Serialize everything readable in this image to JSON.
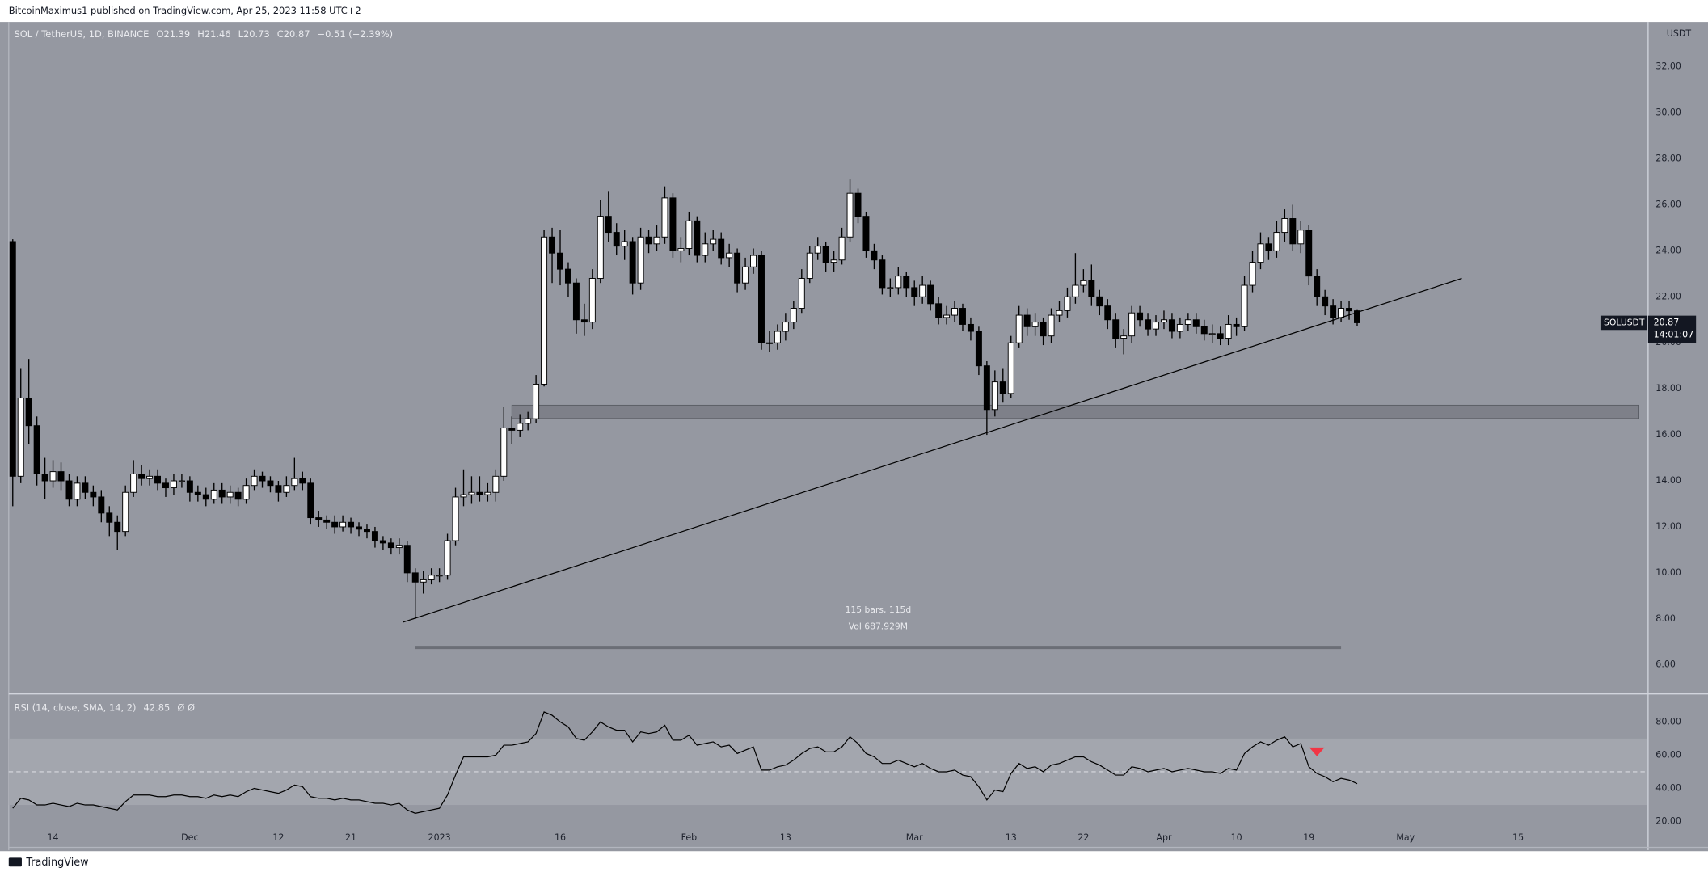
{
  "header": {
    "publisher": "BitcoinMaximus1 published on TradingView.com, Apr 25, 2023 11:58 UTC+2",
    "brand": "TradingView"
  },
  "chart_data": [
    {
      "type": "candlestick",
      "title": "SOL / TetherUS, 1D, BINANCE",
      "ohlc_letters": [
        "O",
        "H",
        "L",
        "C"
      ],
      "change_text": "−0.51 (−2.39%)",
      "axis_unit": "USDT",
      "symbol": "SOLUSDT",
      "countdown": "14:01:07",
      "up_color": "#ffffff",
      "down_color": "#000000",
      "x": [
        0,
        1,
        2,
        3,
        4,
        5,
        6,
        7,
        8,
        9,
        10,
        11,
        12,
        13,
        14,
        15,
        16,
        17,
        18,
        19,
        20,
        21,
        22,
        23,
        24,
        25,
        26,
        27,
        28,
        29,
        30,
        31,
        32,
        33,
        34,
        35,
        36,
        37,
        38,
        39,
        40,
        41,
        42,
        43,
        44,
        45,
        46,
        47,
        48,
        49,
        50,
        51,
        52,
        53,
        54,
        55,
        56,
        57,
        58,
        59,
        60,
        61,
        62,
        63,
        64,
        65,
        66,
        67,
        68,
        69,
        70,
        71,
        72,
        73,
        74,
        75,
        76,
        77,
        78,
        79,
        80,
        81,
        82,
        83,
        84,
        85,
        86,
        87,
        88,
        89,
        90,
        91,
        92,
        93,
        94,
        95,
        96,
        97,
        98,
        99,
        100,
        101,
        102,
        103,
        104,
        105,
        106,
        107,
        108,
        109,
        110,
        111,
        112,
        113,
        114,
        115,
        116,
        117,
        118,
        119,
        120,
        121,
        122,
        123,
        124,
        125,
        126,
        127,
        128,
        129,
        130,
        131,
        132,
        133,
        134,
        135,
        136,
        137,
        138,
        139,
        140,
        141,
        142,
        143,
        144,
        145,
        146,
        147,
        148,
        149,
        150,
        151,
        152,
        153,
        154,
        155,
        156,
        157,
        158,
        159,
        160,
        161,
        162,
        163,
        164,
        165,
        166,
        167
      ],
      "open": [
        24.4,
        14.2,
        17.6,
        16.4,
        14.3,
        14.0,
        14.4,
        14.0,
        13.2,
        13.9,
        13.5,
        13.3,
        12.6,
        12.2,
        11.8,
        13.5,
        14.3,
        14.1,
        14.2,
        13.9,
        13.7,
        14.0,
        14.0,
        13.5,
        13.4,
        13.2,
        13.6,
        13.3,
        13.5,
        13.2,
        13.8,
        14.2,
        14.0,
        13.8,
        13.5,
        13.8,
        14.1,
        13.9,
        12.4,
        12.3,
        12.2,
        12.0,
        12.2,
        12.0,
        11.9,
        11.8,
        11.4,
        11.3,
        11.1,
        11.2,
        10.0,
        9.6,
        9.7,
        9.9,
        9.9,
        11.4,
        13.3,
        13.4,
        13.5,
        13.4,
        13.5,
        14.2,
        16.3,
        16.2,
        16.5,
        16.7,
        18.2,
        24.6,
        23.9,
        23.2,
        22.6,
        21.0,
        20.9,
        22.8,
        25.5,
        24.8,
        24.2,
        24.4,
        22.6,
        24.6,
        24.3,
        24.6,
        26.3,
        24.0,
        24.1,
        25.3,
        23.8,
        24.3,
        24.5,
        23.7,
        23.9,
        22.6,
        23.3,
        23.8,
        20.0,
        20.0,
        20.5,
        20.9,
        21.5,
        22.8,
        23.9,
        24.2,
        23.5,
        23.6,
        24.6,
        26.5,
        25.5,
        24.0,
        23.6,
        22.4,
        22.4,
        22.9,
        22.4,
        22.0,
        22.5,
        21.7,
        21.1,
        21.2,
        21.5,
        20.8,
        20.5,
        19.0,
        17.1,
        18.3,
        17.8,
        20.0,
        21.2,
        20.7,
        20.9,
        20.3,
        21.2,
        21.4,
        22.0,
        22.5,
        22.7,
        22.0,
        21.6,
        21.0,
        20.2,
        20.3,
        21.3,
        21.0,
        20.6,
        20.9,
        21.0,
        20.5,
        20.8,
        21.0,
        20.7,
        20.4,
        20.4,
        20.2,
        20.8,
        20.7,
        22.5,
        23.5,
        24.3,
        24.0,
        24.8,
        25.4,
        24.3,
        24.9,
        22.9,
        22.0,
        21.6,
        21.1,
        21.5,
        21.39
      ],
      "high": [
        24.5,
        18.9,
        19.3,
        16.8,
        15.0,
        14.9,
        14.8,
        14.3,
        14.2,
        14.2,
        13.8,
        13.6,
        12.9,
        12.5,
        13.8,
        14.9,
        14.7,
        14.5,
        14.5,
        14.1,
        14.3,
        14.3,
        14.2,
        13.8,
        13.7,
        13.9,
        13.9,
        13.8,
        13.7,
        14.1,
        14.5,
        14.4,
        14.2,
        14.0,
        14.2,
        15.0,
        14.4,
        14.1,
        12.7,
        12.5,
        12.5,
        12.5,
        12.4,
        12.2,
        12.1,
        12.0,
        11.6,
        11.5,
        11.5,
        11.4,
        10.2,
        10.1,
        10.2,
        10.2,
        11.7,
        13.7,
        14.5,
        14.2,
        14.2,
        13.9,
        14.5,
        17.2,
        16.8,
        16.9,
        17.0,
        18.6,
        24.9,
        25.0,
        24.9,
        23.5,
        22.8,
        21.7,
        23.2,
        26.2,
        26.6,
        25.2,
        24.9,
        24.6,
        25.0,
        24.9,
        25.1,
        26.8,
        26.5,
        24.6,
        25.7,
        25.5,
        24.8,
        24.9,
        24.8,
        24.3,
        24.1,
        23.7,
        24.1,
        24.0,
        20.5,
        20.8,
        21.3,
        21.8,
        23.2,
        24.2,
        24.6,
        24.4,
        24.0,
        25.0,
        27.1,
        26.7,
        25.7,
        24.3,
        23.8,
        22.8,
        23.3,
        23.1,
        22.7,
        22.9,
        22.7,
        22.0,
        21.6,
        21.8,
        21.7,
        21.1,
        20.7,
        19.2,
        18.8,
        18.9,
        20.3,
        21.6,
        21.5,
        21.3,
        21.1,
        21.5,
        21.8,
        22.4,
        23.9,
        23.2,
        23.4,
        22.3,
        21.9,
        21.3,
        20.6,
        21.6,
        21.6,
        21.3,
        21.2,
        21.4,
        21.3,
        21.1,
        21.3,
        21.3,
        21.0,
        20.8,
        20.7,
        21.2,
        21.1,
        22.9,
        24.0,
        24.8,
        24.6,
        25.3,
        25.8,
        26.0,
        25.3,
        25.1,
        23.2,
        22.3,
        21.9,
        21.8,
        21.8,
        21.46
      ],
      "low": [
        12.9,
        13.9,
        15.6,
        13.8,
        13.2,
        13.7,
        13.6,
        12.9,
        12.9,
        13.2,
        12.9,
        12.2,
        11.6,
        11.0,
        11.6,
        13.3,
        13.8,
        13.8,
        13.6,
        13.3,
        13.4,
        13.7,
        13.1,
        13.1,
        12.9,
        13.0,
        13.0,
        13.0,
        12.9,
        13.0,
        13.6,
        13.7,
        13.5,
        13.1,
        13.3,
        13.6,
        13.6,
        12.1,
        12.0,
        11.9,
        11.7,
        11.8,
        11.7,
        11.6,
        11.5,
        11.1,
        11.0,
        10.8,
        10.8,
        9.6,
        8.0,
        9.1,
        9.5,
        9.6,
        9.7,
        11.2,
        12.9,
        13.0,
        13.1,
        13.1,
        13.1,
        14.0,
        15.6,
        15.9,
        16.2,
        16.5,
        18.1,
        22.6,
        22.5,
        22.0,
        20.4,
        20.3,
        20.6,
        22.6,
        24.4,
        23.8,
        23.6,
        22.1,
        22.3,
        23.9,
        24.0,
        24.3,
        23.7,
        23.5,
        23.8,
        23.5,
        23.5,
        24.0,
        23.4,
        23.3,
        22.2,
        22.3,
        23.0,
        19.7,
        19.6,
        19.7,
        20.1,
        20.6,
        21.3,
        22.6,
        23.6,
        23.1,
        23.1,
        23.4,
        24.4,
        25.2,
        23.7,
        23.2,
        22.1,
        22.0,
        22.1,
        22.0,
        21.6,
        21.7,
        21.4,
        20.8,
        20.8,
        20.9,
        20.5,
        20.1,
        18.6,
        16.0,
        16.8,
        17.4,
        17.6,
        19.8,
        20.3,
        20.3,
        19.9,
        20.0,
        20.9,
        21.1,
        21.7,
        22.2,
        21.6,
        21.2,
        20.6,
        19.8,
        19.5,
        20.0,
        20.7,
        20.3,
        20.3,
        20.6,
        20.2,
        20.2,
        20.5,
        20.4,
        20.1,
        20.0,
        19.9,
        19.9,
        20.3,
        20.5,
        22.2,
        23.2,
        23.6,
        23.7,
        24.4,
        24.0,
        23.9,
        22.5,
        21.6,
        21.2,
        20.8,
        20.9,
        21.0,
        20.73
      ],
      "close": [
        14.2,
        17.6,
        16.4,
        14.3,
        14.0,
        14.4,
        14.0,
        13.2,
        13.9,
        13.5,
        13.3,
        12.6,
        12.2,
        11.8,
        13.5,
        14.3,
        14.1,
        14.2,
        13.9,
        13.7,
        14.0,
        14.0,
        13.5,
        13.4,
        13.2,
        13.6,
        13.3,
        13.5,
        13.2,
        13.8,
        14.2,
        14.0,
        13.8,
        13.5,
        13.8,
        14.1,
        13.9,
        12.4,
        12.3,
        12.2,
        12.0,
        12.2,
        12.0,
        11.9,
        11.8,
        11.4,
        11.3,
        11.1,
        11.2,
        10.0,
        9.6,
        9.7,
        9.9,
        9.9,
        11.4,
        13.3,
        13.4,
        13.5,
        13.4,
        13.5,
        14.2,
        16.3,
        16.2,
        16.5,
        16.7,
        18.2,
        24.6,
        23.9,
        23.2,
        22.6,
        21.0,
        20.9,
        22.8,
        25.5,
        24.8,
        24.2,
        24.4,
        22.6,
        24.6,
        24.3,
        24.6,
        26.3,
        24.0,
        24.1,
        25.3,
        23.8,
        24.3,
        24.5,
        23.7,
        23.9,
        22.6,
        23.3,
        23.8,
        20.0,
        20.0,
        20.5,
        20.9,
        21.5,
        22.8,
        23.9,
        24.2,
        23.5,
        23.6,
        24.6,
        26.5,
        25.5,
        24.0,
        23.6,
        22.4,
        22.4,
        22.9,
        22.4,
        22.0,
        22.5,
        21.7,
        21.1,
        21.2,
        21.5,
        20.8,
        20.5,
        19.0,
        17.1,
        18.3,
        17.8,
        20.0,
        21.2,
        20.7,
        20.9,
        20.3,
        21.2,
        21.4,
        22.0,
        22.5,
        22.7,
        22.0,
        21.6,
        21.0,
        20.2,
        20.3,
        21.3,
        21.0,
        20.6,
        20.9,
        21.0,
        20.5,
        20.8,
        21.0,
        20.7,
        20.4,
        20.4,
        20.2,
        20.8,
        20.7,
        22.5,
        23.5,
        24.3,
        24.0,
        24.8,
        25.4,
        24.3,
        24.9,
        22.9,
        22.0,
        21.6,
        21.1,
        21.5,
        21.39,
        20.87
      ],
      "xlim": [
        -0.5,
        203
      ],
      "ylim": [
        4.76,
        33.95
      ],
      "yticks": [
        {
          "value": 6,
          "label": "6.00"
        },
        {
          "value": 8,
          "label": "8.00"
        },
        {
          "value": 10,
          "label": "10.00"
        },
        {
          "value": 12,
          "label": "12.00"
        },
        {
          "value": 14,
          "label": "14.00"
        },
        {
          "value": 16,
          "label": "16.00"
        },
        {
          "value": 18,
          "label": "18.00"
        },
        {
          "value": 20,
          "label": "20.00"
        },
        {
          "value": 22,
          "label": "22.00"
        },
        {
          "value": 24,
          "label": "24.00"
        },
        {
          "value": 26,
          "label": "26.00"
        },
        {
          "value": 28,
          "label": "28.00"
        },
        {
          "value": 30,
          "label": "30.00"
        },
        {
          "value": 32,
          "label": "32.00"
        }
      ],
      "trendline": {
        "x": [
          48.5,
          180
        ],
        "y": [
          7.86,
          22.8
        ],
        "color": "#000000"
      },
      "zone": {
        "x": [
          62,
          202
        ],
        "y": [
          16.71,
          17.29
        ],
        "color": "#6b6e76"
      },
      "measure": {
        "x": [
          50,
          165
        ],
        "y": 6.76,
        "bars_label": "115 bars, 115d",
        "volume_label": "Vol 687.929M",
        "color": "#6b6e76"
      }
    },
    {
      "type": "line",
      "title": "RSI (14, close, SMA, 14, 2)",
      "extra": "Ø Ø",
      "color": "#000000",
      "x": [
        0,
        1,
        2,
        3,
        4,
        5,
        6,
        7,
        8,
        9,
        10,
        11,
        12,
        13,
        14,
        15,
        16,
        17,
        18,
        19,
        20,
        21,
        22,
        23,
        24,
        25,
        26,
        27,
        28,
        29,
        30,
        31,
        32,
        33,
        34,
        35,
        36,
        37,
        38,
        39,
        40,
        41,
        42,
        43,
        44,
        45,
        46,
        47,
        48,
        49,
        50,
        51,
        52,
        53,
        54,
        55,
        56,
        57,
        58,
        59,
        60,
        61,
        62,
        63,
        64,
        65,
        66,
        67,
        68,
        69,
        70,
        71,
        72,
        73,
        74,
        75,
        76,
        77,
        78,
        79,
        80,
        81,
        82,
        83,
        84,
        85,
        86,
        87,
        88,
        89,
        90,
        91,
        92,
        93,
        94,
        95,
        96,
        97,
        98,
        99,
        100,
        101,
        102,
        103,
        104,
        105,
        106,
        107,
        108,
        109,
        110,
        111,
        112,
        113,
        114,
        115,
        116,
        117,
        118,
        119,
        120,
        121,
        122,
        123,
        124,
        125,
        126,
        127,
        128,
        129,
        130,
        131,
        132,
        133,
        134,
        135,
        136,
        137,
        138,
        139,
        140,
        141,
        142,
        143,
        144,
        145,
        146,
        147,
        148,
        149,
        150,
        151,
        152,
        153,
        154,
        155,
        156,
        157,
        158,
        159,
        160,
        161,
        162,
        163,
        164,
        165,
        166,
        167
      ],
      "values": [
        28,
        34,
        33,
        30,
        30,
        31,
        30,
        29,
        31,
        30,
        30,
        29,
        28,
        27,
        32,
        36,
        36,
        36,
        35,
        35,
        36,
        36,
        35,
        35,
        34,
        36,
        35,
        36,
        35,
        38,
        40,
        39,
        38,
        37,
        39,
        42,
        41,
        35,
        34,
        34,
        33,
        34,
        33,
        33,
        32,
        31,
        31,
        30,
        31,
        27,
        25,
        26,
        27,
        28,
        36,
        48,
        59,
        59,
        59,
        59,
        60,
        66,
        66,
        67,
        68,
        73,
        86,
        84,
        80,
        77,
        70,
        69,
        74,
        80,
        77,
        75,
        75,
        68,
        74,
        73,
        74,
        78,
        69,
        69,
        72,
        66,
        67,
        68,
        65,
        66,
        61,
        63,
        65,
        51,
        51,
        53,
        54,
        57,
        61,
        64,
        65,
        62,
        62,
        65,
        71,
        67,
        61,
        59,
        55,
        55,
        57,
        55,
        53,
        55,
        52,
        50,
        50,
        51,
        48,
        47,
        41,
        33,
        39,
        38,
        49,
        55,
        52,
        53,
        50,
        54,
        55,
        57,
        59,
        59,
        56,
        54,
        51,
        48,
        48,
        53,
        52,
        50,
        51,
        52,
        50,
        51,
        52,
        51,
        50,
        50,
        49,
        52,
        51,
        61,
        65,
        68,
        66,
        69,
        71,
        65,
        67,
        53,
        49,
        47,
        44,
        46,
        45,
        42.85
      ],
      "band": [
        30,
        70
      ],
      "midline": 50,
      "marker": {
        "x": 162,
        "y": 62,
        "color": "#f23645"
      },
      "xlim": [
        -0.5,
        203
      ],
      "ylim": [
        4.8,
        96.5
      ],
      "yticks": [
        {
          "value": 20,
          "label": "20.00"
        },
        {
          "value": 40,
          "label": "40.00"
        },
        {
          "value": 60,
          "label": "60.00"
        },
        {
          "value": 80,
          "label": "80.00"
        }
      ],
      "xticks": [
        {
          "value": 5,
          "label": "14"
        },
        {
          "value": 22,
          "label": "Dec"
        },
        {
          "value": 33,
          "label": "12"
        },
        {
          "value": 42,
          "label": "21"
        },
        {
          "value": 53,
          "label": "2023"
        },
        {
          "value": 68,
          "label": "16"
        },
        {
          "value": 84,
          "label": "Feb"
        },
        {
          "value": 96,
          "label": "13"
        },
        {
          "value": 112,
          "label": "Mar"
        },
        {
          "value": 124,
          "label": "13"
        },
        {
          "value": 133,
          "label": "22"
        },
        {
          "value": 143,
          "label": "Apr"
        },
        {
          "value": 152,
          "label": "10"
        },
        {
          "value": 161,
          "label": "19"
        },
        {
          "value": 173,
          "label": "May"
        },
        {
          "value": 187,
          "label": "15"
        }
      ]
    }
  ]
}
